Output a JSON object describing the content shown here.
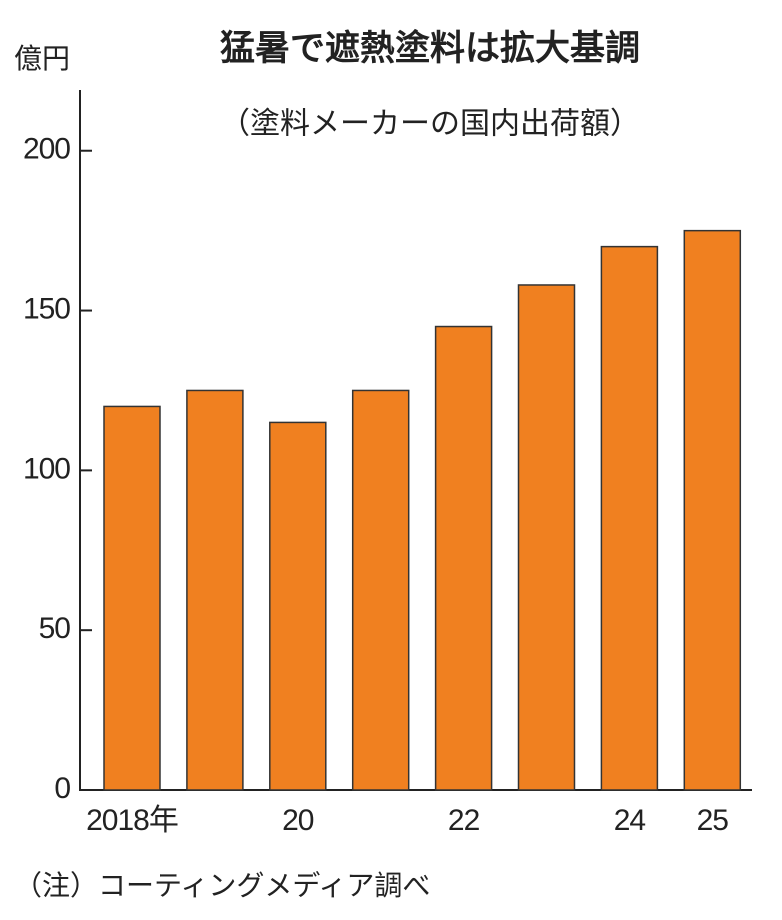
{
  "chart_data": {
    "type": "bar",
    "title": "猛暑で遮熱塗料は拡大基調",
    "subtitle": "（塗料メーカーの国内出荷額）",
    "y_label": "億円",
    "note": "（注）コーティングメディア調べ",
    "categories": [
      "2018年",
      null,
      "20",
      null,
      "22",
      null,
      "24",
      "25"
    ],
    "values": [
      120,
      125,
      115,
      125,
      145,
      158,
      170,
      175
    ],
    "color": "#f08020",
    "ylim": [
      0,
      219
    ],
    "yticks": [
      0,
      50,
      100,
      150,
      200
    ],
    "grid": false
  }
}
